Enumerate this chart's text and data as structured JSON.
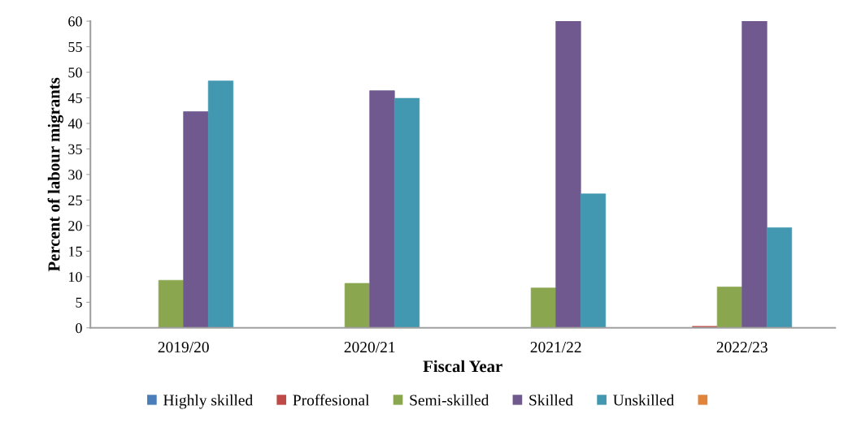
{
  "chart_data": {
    "type": "bar",
    "xlabel": "Fiscal Year",
    "ylabel": "Percent of labour migrants",
    "categories": [
      "2019/20",
      "2020/21",
      "2021/22",
      "2022/23"
    ],
    "series": [
      {
        "name": "Highly skilled",
        "color": "#4a7ebb",
        "values": [
          0,
          0,
          0,
          0
        ]
      },
      {
        "name": "Proffesional",
        "color": "#be4b48",
        "values": [
          0,
          0,
          0,
          0.3
        ]
      },
      {
        "name": "Semi-skilled",
        "color": "#8aa64f",
        "values": [
          9.3,
          8.7,
          7.8,
          8.0
        ]
      },
      {
        "name": "Skilled",
        "color": "#70598f",
        "values": [
          42.3,
          46.4,
          60,
          60
        ]
      },
      {
        "name": "Unskilled",
        "color": "#4298b0",
        "values": [
          48.3,
          44.9,
          26.2,
          19.6
        ]
      },
      {
        "color": "#e0843c",
        "values": [
          0,
          0,
          0,
          0
        ]
      }
    ],
    "ylim": [
      0,
      60
    ],
    "yticks": [
      0,
      5,
      10,
      15,
      20,
      25,
      30,
      35,
      40,
      45,
      50,
      55,
      60
    ],
    "grid": false,
    "legend": "bottom"
  }
}
